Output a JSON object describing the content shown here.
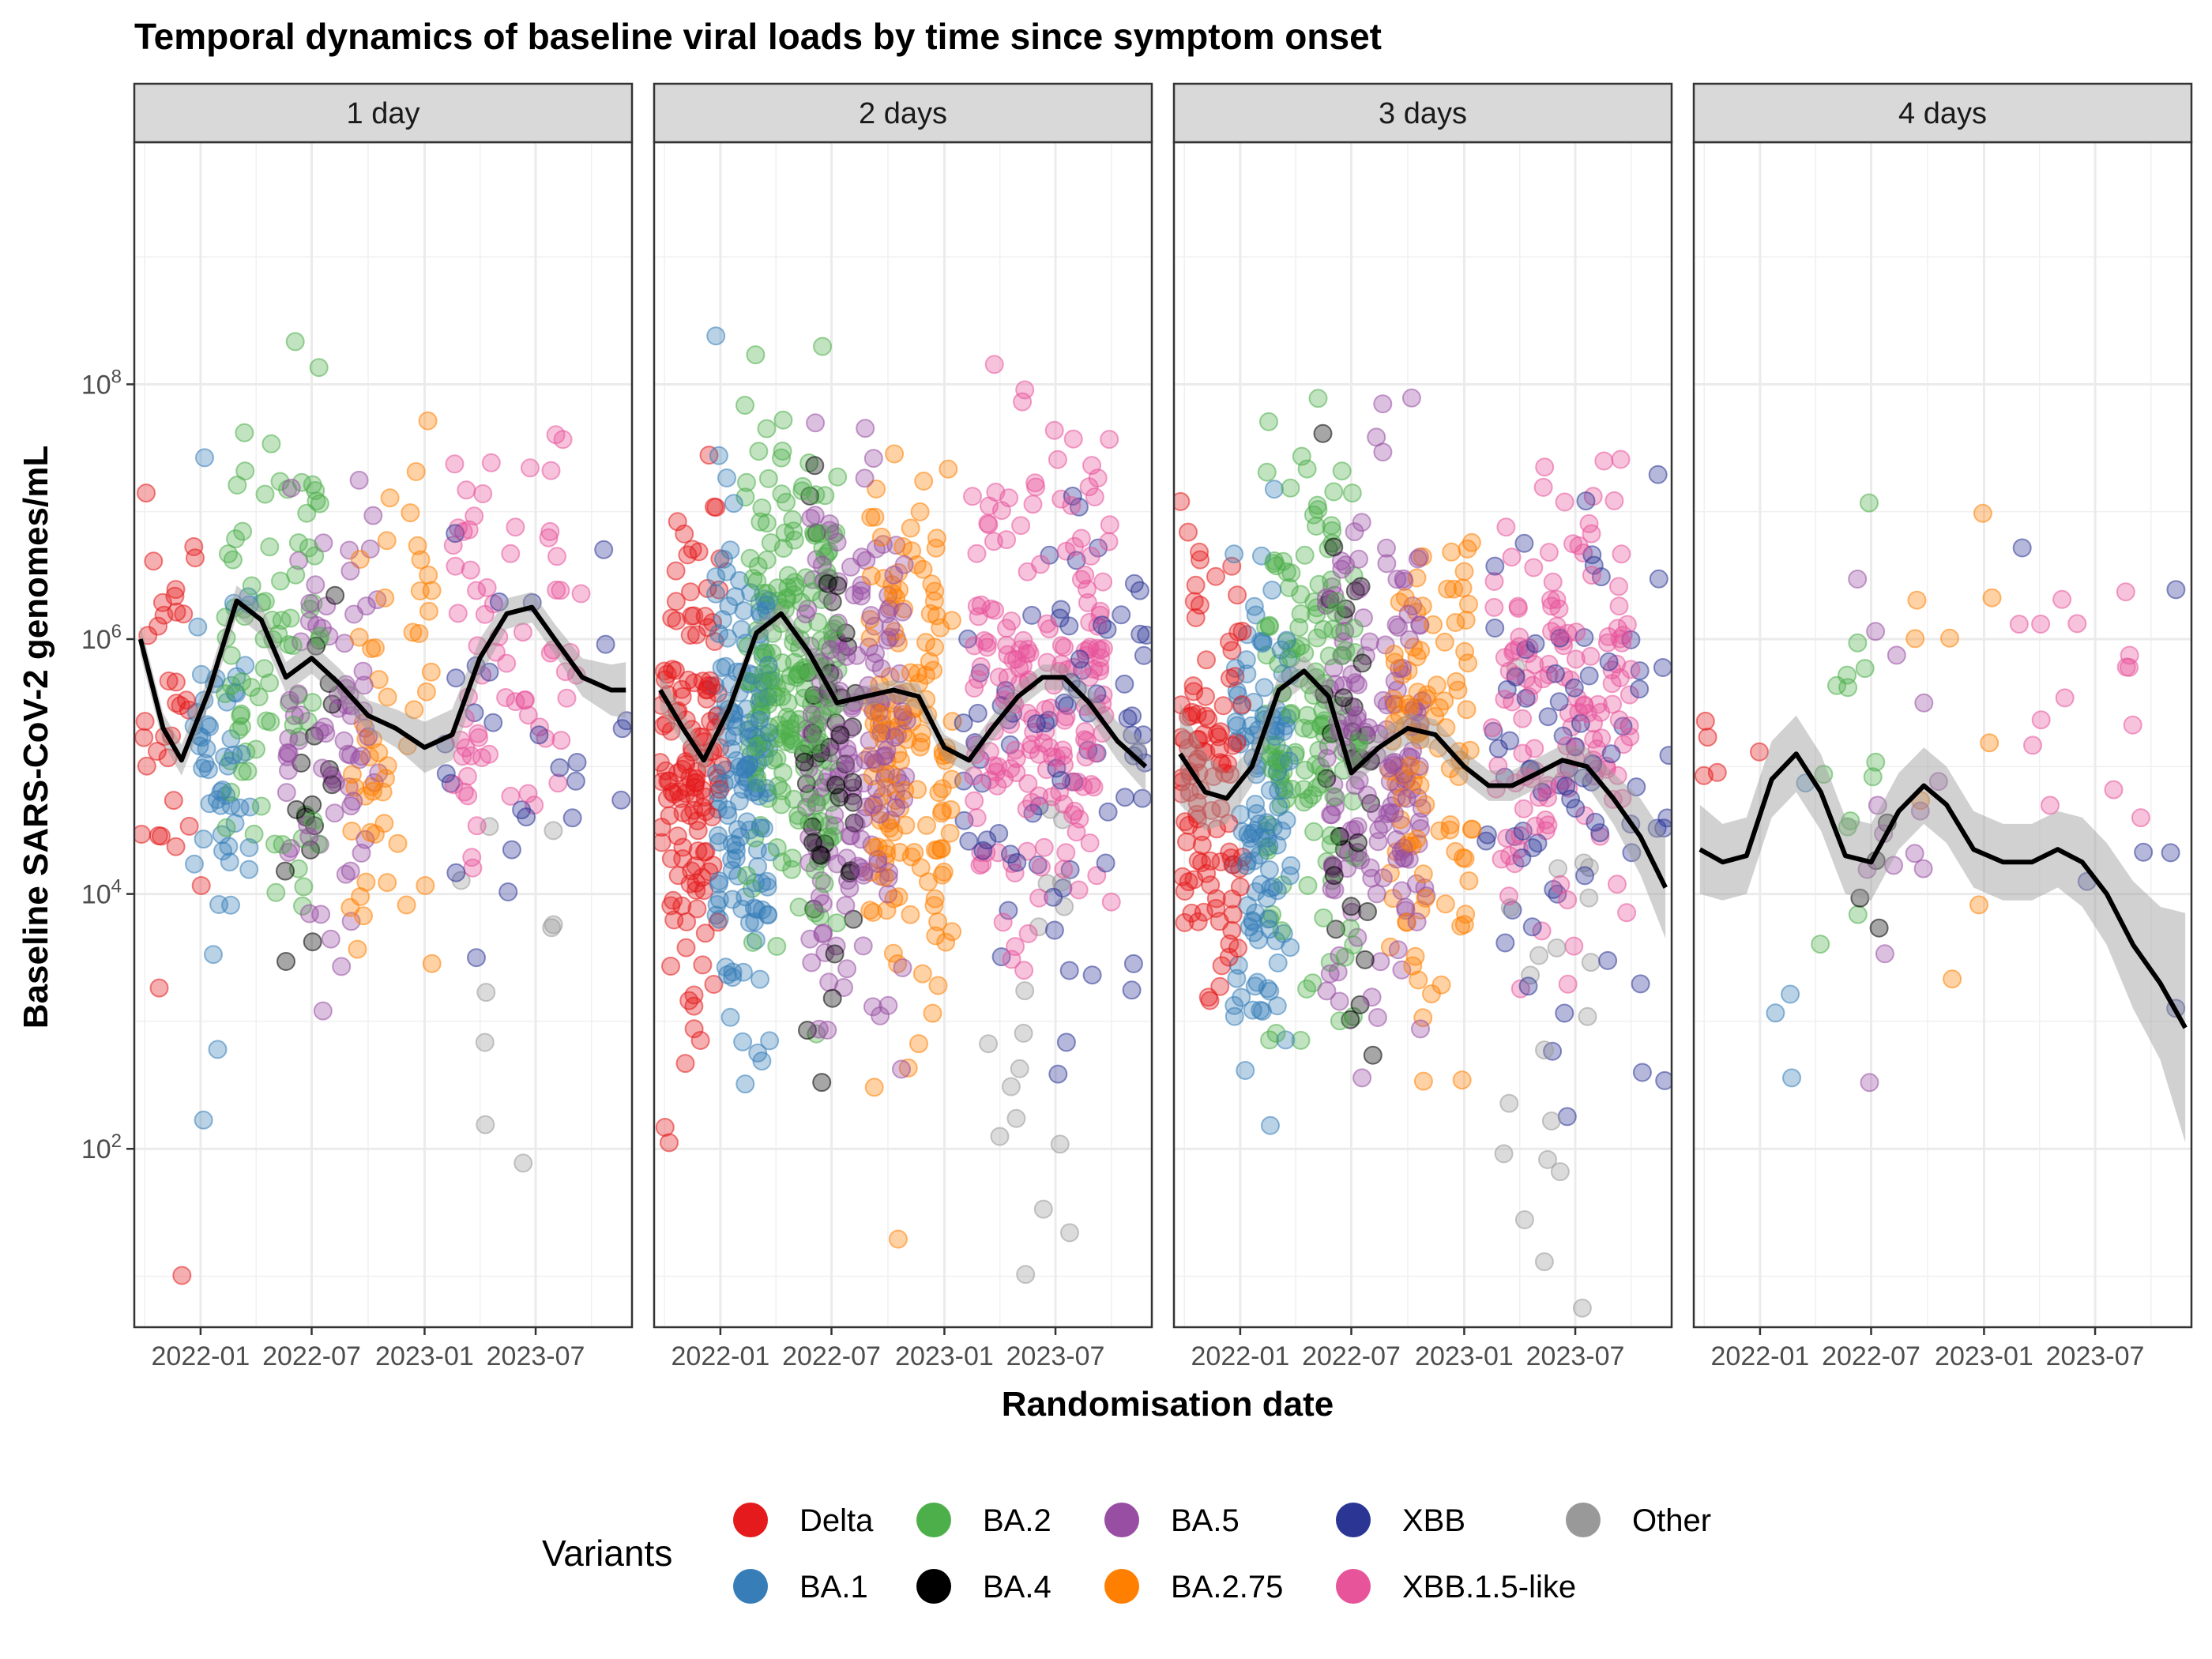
{
  "chart_data": {
    "type": "scatter",
    "title": "Temporal dynamics of baseline viral loads by time since symptom onset",
    "xlabel": "Randomisation date",
    "ylabel": "Baseline SARS-CoV-2 genomes/mL",
    "y_scale": "log10",
    "ylim_log10": [
      0.6,
      9.9
    ],
    "y_ticks": [
      {
        "exp": 2,
        "base": "10",
        "sup": "2"
      },
      {
        "exp": 4,
        "base": "10",
        "sup": "4"
      },
      {
        "exp": 6,
        "base": "10",
        "sup": "6"
      },
      {
        "exp": 8,
        "base": "10",
        "sup": "8"
      }
    ],
    "x_range": [
      "2021-09-15",
      "2023-12-05"
    ],
    "x_ticks": [
      {
        "date": "2022-01-01",
        "label": "2022-01"
      },
      {
        "date": "2022-07-01",
        "label": "2022-07"
      },
      {
        "date": "2023-01-01",
        "label": "2023-01"
      },
      {
        "date": "2023-07-01",
        "label": "2023-07"
      }
    ],
    "grid": true,
    "legend_position": "bottom",
    "legend_title": "Variants",
    "variants": [
      {
        "name": "Delta",
        "color": "#E41A1C"
      },
      {
        "name": "BA.1",
        "color": "#377EB8"
      },
      {
        "name": "BA.2",
        "color": "#4DAF4A"
      },
      {
        "name": "BA.4",
        "color": "#000000"
      },
      {
        "name": "BA.5",
        "color": "#984EA3"
      },
      {
        "name": "BA.2.75",
        "color": "#FF7F00"
      },
      {
        "name": "XBB",
        "color": "#2B3594"
      },
      {
        "name": "XBB.1.5-like",
        "color": "#E7549A"
      },
      {
        "name": "Other",
        "color": "#999999"
      }
    ],
    "variant_periods": [
      {
        "variant": "Delta",
        "start": "2021-09-25",
        "end": "2022-01-05",
        "center_log10": 5.2
      },
      {
        "variant": "BA.1",
        "start": "2021-12-20",
        "end": "2022-03-25",
        "center_log10": 5.1
      },
      {
        "variant": "BA.2",
        "start": "2022-02-10",
        "end": "2022-07-15",
        "center_log10": 5.8
      },
      {
        "variant": "BA.4",
        "start": "2022-05-15",
        "end": "2022-08-10",
        "center_log10": 5.0
      },
      {
        "variant": "BA.5",
        "start": "2022-05-20",
        "end": "2022-11-01",
        "center_log10": 5.4
      },
      {
        "variant": "BA.2.75",
        "start": "2022-09-01",
        "end": "2023-01-15",
        "center_log10": 5.3
      },
      {
        "variant": "XBB",
        "start": "2023-02-01",
        "end": "2023-12-01",
        "center_log10": 5.2
      },
      {
        "variant": "XBB.1.5-like",
        "start": "2023-02-15",
        "end": "2023-09-30",
        "center_log10": 5.9
      },
      {
        "variant": "Other",
        "start": "2023-03-01",
        "end": "2023-08-01",
        "center_log10": 3.2
      }
    ],
    "panels": [
      {
        "label": "1 day",
        "n_points": 420,
        "smooth": {
          "x": [
            "2021-09-25",
            "2021-11-01",
            "2021-12-01",
            "2022-01-15",
            "2022-03-01",
            "2022-04-10",
            "2022-05-20",
            "2022-07-01",
            "2022-08-15",
            "2022-10-01",
            "2022-11-15",
            "2023-01-01",
            "2023-02-15",
            "2023-04-01",
            "2023-05-15",
            "2023-06-25",
            "2023-08-01",
            "2023-09-15",
            "2023-11-01",
            "2023-11-25"
          ],
          "y": [
            6.0,
            5.3,
            5.05,
            5.6,
            6.3,
            6.15,
            5.7,
            5.85,
            5.65,
            5.4,
            5.3,
            5.15,
            5.25,
            5.85,
            6.2,
            6.25,
            6.0,
            5.7,
            5.6,
            5.6
          ],
          "band": [
            0.12,
            0.12,
            0.12,
            0.12,
            0.12,
            0.12,
            0.12,
            0.12,
            0.12,
            0.12,
            0.15,
            0.2,
            0.2,
            0.15,
            0.12,
            0.12,
            0.12,
            0.15,
            0.2,
            0.22
          ]
        }
      },
      {
        "label": "2 days",
        "n_points": 1150,
        "smooth": {
          "x": [
            "2021-09-25",
            "2021-11-01",
            "2021-12-05",
            "2022-01-15",
            "2022-03-01",
            "2022-04-10",
            "2022-05-25",
            "2022-07-10",
            "2022-08-25",
            "2022-10-10",
            "2022-11-20",
            "2023-01-01",
            "2023-02-10",
            "2023-03-20",
            "2023-05-01",
            "2023-06-10",
            "2023-07-15",
            "2023-08-25",
            "2023-10-10",
            "2023-11-25"
          ],
          "y": [
            5.6,
            5.3,
            5.05,
            5.45,
            6.05,
            6.2,
            5.9,
            5.5,
            5.55,
            5.6,
            5.55,
            5.15,
            5.05,
            5.3,
            5.55,
            5.7,
            5.7,
            5.5,
            5.2,
            5.0
          ],
          "band": [
            0.15,
            0.12,
            0.1,
            0.1,
            0.08,
            0.08,
            0.08,
            0.08,
            0.08,
            0.08,
            0.1,
            0.1,
            0.1,
            0.1,
            0.1,
            0.1,
            0.1,
            0.12,
            0.15,
            0.2
          ]
        }
      },
      {
        "label": "3 days",
        "n_points": 900,
        "smooth": {
          "x": [
            "2021-09-25",
            "2021-11-05",
            "2021-12-10",
            "2022-01-20",
            "2022-03-05",
            "2022-04-15",
            "2022-05-25",
            "2022-07-01",
            "2022-08-15",
            "2022-10-01",
            "2022-11-15",
            "2023-01-01",
            "2023-02-10",
            "2023-03-20",
            "2023-05-01",
            "2023-06-10",
            "2023-07-20",
            "2023-09-01",
            "2023-10-15",
            "2023-11-25"
          ],
          "y": [
            5.1,
            4.8,
            4.75,
            5.0,
            5.6,
            5.75,
            5.55,
            4.95,
            5.15,
            5.3,
            5.25,
            5.0,
            4.85,
            4.85,
            4.95,
            5.05,
            5.0,
            4.75,
            4.45,
            4.05
          ],
          "band": [
            0.4,
            0.3,
            0.2,
            0.15,
            0.12,
            0.12,
            0.12,
            0.12,
            0.12,
            0.12,
            0.12,
            0.12,
            0.12,
            0.12,
            0.12,
            0.12,
            0.15,
            0.2,
            0.3,
            0.4
          ]
        }
      },
      {
        "label": "4 days",
        "n_points": 70,
        "smooth": {
          "x": [
            "2021-09-25",
            "2021-11-01",
            "2021-12-10",
            "2022-01-20",
            "2022-03-01",
            "2022-04-10",
            "2022-05-20",
            "2022-07-01",
            "2022-08-15",
            "2022-09-25",
            "2022-11-01",
            "2022-12-15",
            "2023-02-01",
            "2023-03-20",
            "2023-05-01",
            "2023-06-10",
            "2023-07-20",
            "2023-09-01",
            "2023-10-15",
            "2023-11-25"
          ],
          "y": [
            4.35,
            4.25,
            4.3,
            4.9,
            5.1,
            4.8,
            4.3,
            4.25,
            4.65,
            4.85,
            4.7,
            4.35,
            4.25,
            4.25,
            4.35,
            4.25,
            4.0,
            3.6,
            3.3,
            2.95
          ],
          "band": [
            0.35,
            0.3,
            0.3,
            0.3,
            0.3,
            0.3,
            0.3,
            0.3,
            0.3,
            0.3,
            0.3,
            0.3,
            0.3,
            0.3,
            0.3,
            0.35,
            0.4,
            0.5,
            0.6,
            0.9
          ]
        }
      }
    ]
  }
}
